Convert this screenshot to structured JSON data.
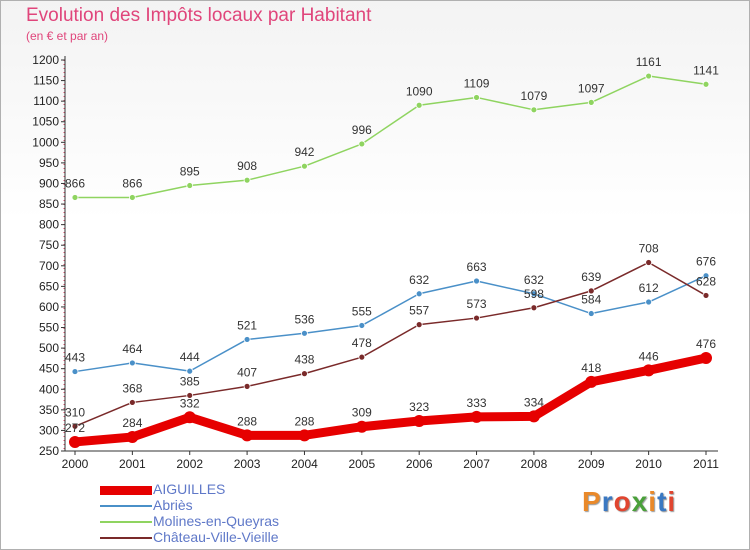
{
  "title": "Evolution des Impôts locaux par Habitant",
  "subtitle": "(en € et par an)",
  "brand": "Proxiti",
  "brand_colors": [
    "#e9892a",
    "#3a78c2",
    "#e0452f",
    "#4aa03a",
    "#e9892a",
    "#3a78c2",
    "#e0452f"
  ],
  "legend": [
    {
      "name": "AIGUILLES",
      "color": "#e60000",
      "weight": "thick"
    },
    {
      "name": "Abriès",
      "color": "#4a90c8",
      "weight": "thin"
    },
    {
      "name": "Molines-en-Queyras",
      "color": "#8fd460",
      "weight": "thin"
    },
    {
      "name": "Château-Ville-Vieille",
      "color": "#7a2a2a",
      "weight": "thin"
    }
  ],
  "chart_data": {
    "type": "line",
    "title": "Evolution des Impôts locaux par Habitant",
    "subtitle": "(en € et par an)",
    "x": [
      "2000",
      "2001",
      "2002",
      "2003",
      "2004",
      "2005",
      "2006",
      "2007",
      "2008",
      "2009",
      "2010",
      "2011"
    ],
    "ylim": [
      250,
      1200
    ],
    "yticks": [
      250,
      300,
      350,
      400,
      450,
      500,
      550,
      600,
      650,
      700,
      750,
      800,
      850,
      900,
      950,
      1000,
      1050,
      1100,
      1150,
      1200
    ],
    "grid": false,
    "legend_position": "bottom-left",
    "series": [
      {
        "name": "Molines-en-Queyras",
        "color": "#8fd460",
        "values": [
          866,
          866,
          895,
          908,
          942,
          996,
          1090,
          1109,
          1079,
          1097,
          1161,
          1141
        ]
      },
      {
        "name": "Abriès",
        "color": "#4a90c8",
        "values": [
          443,
          464,
          444,
          521,
          536,
          555,
          632,
          663,
          632,
          584,
          612,
          676
        ]
      },
      {
        "name": "Château-Ville-Vieille",
        "color": "#7a2a2a",
        "values": [
          310,
          368,
          385,
          407,
          438,
          478,
          557,
          573,
          598,
          639,
          708,
          628
        ]
      },
      {
        "name": "AIGUILLES",
        "color": "#e60000",
        "values": [
          272,
          284,
          332,
          288,
          288,
          309,
          323,
          333,
          334,
          418,
          446,
          476
        ]
      }
    ]
  }
}
